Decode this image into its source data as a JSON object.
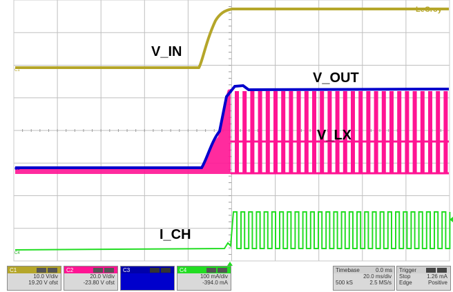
{
  "brand": "LeCroy",
  "labels": {
    "vin": "V_IN",
    "vout": "V_OUT",
    "vlx": "V_LX",
    "ich": "I_CH"
  },
  "channel_markers": {
    "c1": "C1",
    "c2": "C2",
    "c4": "C4"
  },
  "channels": [
    {
      "name": "C1",
      "vdiv": "10.0 V/div",
      "offset": "19.20 V ofst",
      "color": "#b5a62a"
    },
    {
      "name": "C2",
      "vdiv": "20.0 V/div",
      "offset": "-23.80 V ofst",
      "color": "#ff1493"
    },
    {
      "name": "C3",
      "vdiv": "",
      "offset": "",
      "color": "#0000cc"
    },
    {
      "name": "C4",
      "vdiv": "100 mA/div",
      "offset": "-394.0 mA",
      "color": "#22dd22"
    }
  ],
  "timebase": {
    "label": "Timebase",
    "delay": "0.0 ms",
    "tdiv": "20.0 ms/div",
    "samples": "500 kS",
    "rate": "2.5 MS/s"
  },
  "trigger": {
    "label": "Trigger",
    "mode": "Stop",
    "level": "1.26 mA",
    "type": "Edge",
    "slope": "Positive"
  },
  "colors": {
    "c1": "#b5a62a",
    "c2": "#ff1493",
    "c3": "#0000cc",
    "c4": "#22dd22",
    "grid": "#bfbfbf",
    "frame": "#c8c8c8"
  }
}
